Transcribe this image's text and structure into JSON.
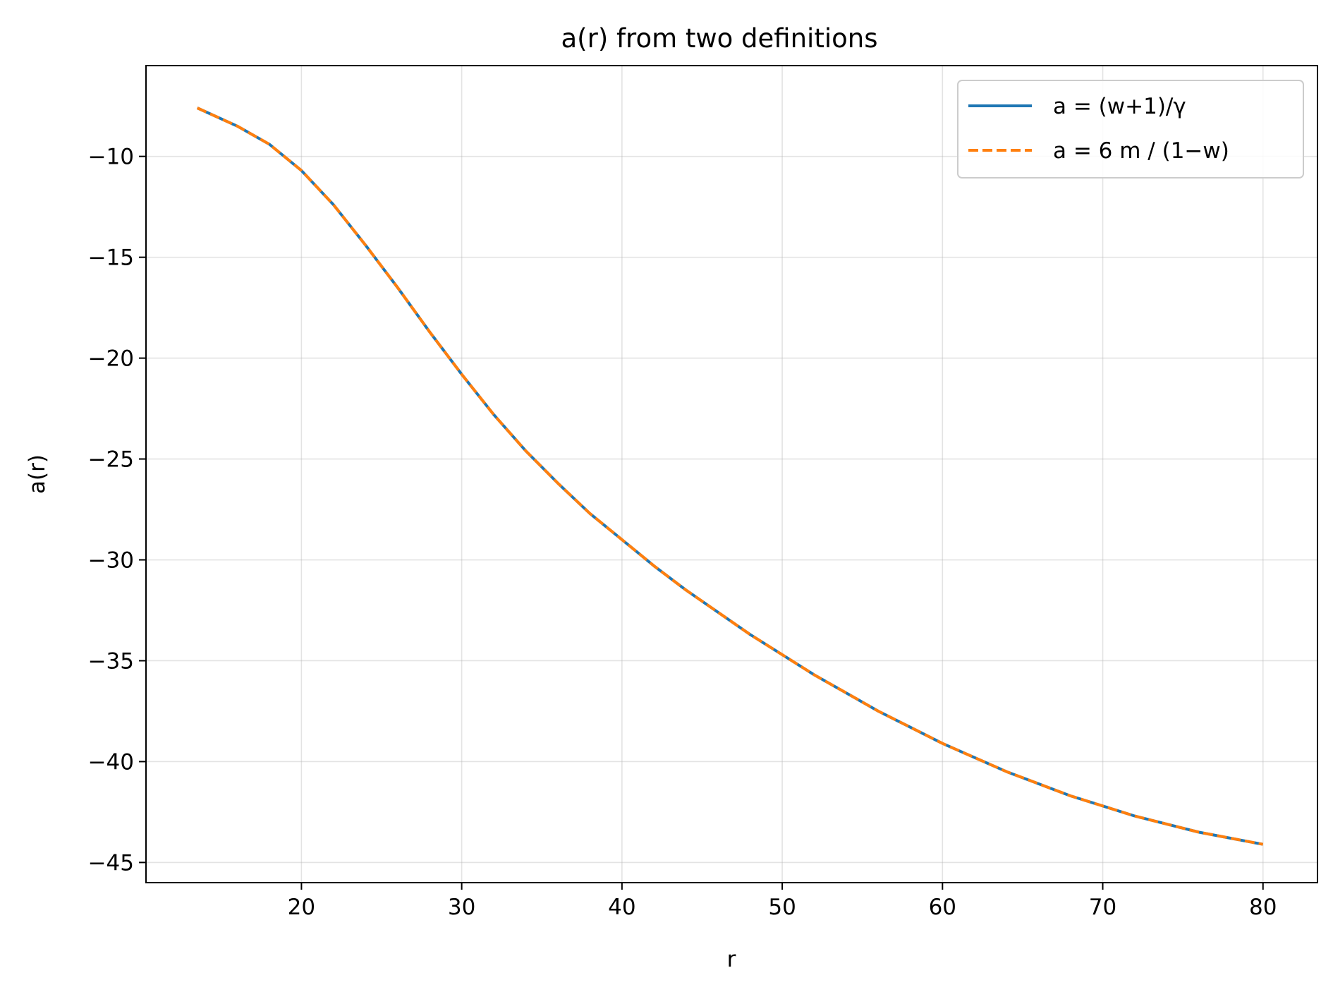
{
  "chart_data": {
    "type": "line",
    "title": "a(r) from two definitions",
    "xlabel": "r",
    "ylabel": "a(r)",
    "xlim": [
      10.3,
      83.4
    ],
    "ylim": [
      -46,
      -5.5
    ],
    "xticks": [
      20,
      30,
      40,
      50,
      60,
      70,
      80
    ],
    "yticks": [
      -10,
      -15,
      -20,
      -25,
      -30,
      -35,
      -40,
      -45
    ],
    "xtick_labels": [
      "20",
      "30",
      "40",
      "50",
      "60",
      "70",
      "80"
    ],
    "ytick_labels": [
      "−10",
      "−15",
      "−20",
      "−25",
      "−30",
      "−35",
      "−40",
      "−45"
    ],
    "grid": true,
    "legend_position": "top-right",
    "series": [
      {
        "name": "a = (w+1)/γ",
        "color": "#1f77b4",
        "style": "solid",
        "x": [
          13.5,
          16,
          18,
          20,
          22,
          24,
          26,
          28,
          30,
          32,
          34,
          36,
          38,
          40,
          42,
          44,
          46,
          48,
          50,
          52,
          54,
          56,
          58,
          60,
          62,
          64,
          66,
          68,
          70,
          72,
          74,
          76,
          78,
          80
        ],
        "y": [
          -7.6,
          -8.5,
          -9.4,
          -10.7,
          -12.4,
          -14.4,
          -16.5,
          -18.7,
          -20.8,
          -22.8,
          -24.6,
          -26.2,
          -27.7,
          -29.0,
          -30.3,
          -31.5,
          -32.6,
          -33.7,
          -34.7,
          -35.7,
          -36.6,
          -37.5,
          -38.3,
          -39.1,
          -39.8,
          -40.5,
          -41.1,
          -41.7,
          -42.2,
          -42.7,
          -43.1,
          -43.5,
          -43.8,
          -44.1
        ]
      },
      {
        "name": "a = 6 m / (1−w)",
        "color": "#ff7f0e",
        "style": "dashed",
        "x": [
          13.5,
          16,
          18,
          20,
          22,
          24,
          26,
          28,
          30,
          32,
          34,
          36,
          38,
          40,
          42,
          44,
          46,
          48,
          50,
          52,
          54,
          56,
          58,
          60,
          62,
          64,
          66,
          68,
          70,
          72,
          74,
          76,
          78,
          80
        ],
        "y": [
          -7.6,
          -8.5,
          -9.4,
          -10.7,
          -12.4,
          -14.4,
          -16.5,
          -18.7,
          -20.8,
          -22.8,
          -24.6,
          -26.2,
          -27.7,
          -29.0,
          -30.3,
          -31.5,
          -32.6,
          -33.7,
          -34.7,
          -35.7,
          -36.6,
          -37.5,
          -38.3,
          -39.1,
          -39.8,
          -40.5,
          -41.1,
          -41.7,
          -42.2,
          -42.7,
          -43.1,
          -43.5,
          -43.8,
          -44.1
        ]
      }
    ]
  }
}
